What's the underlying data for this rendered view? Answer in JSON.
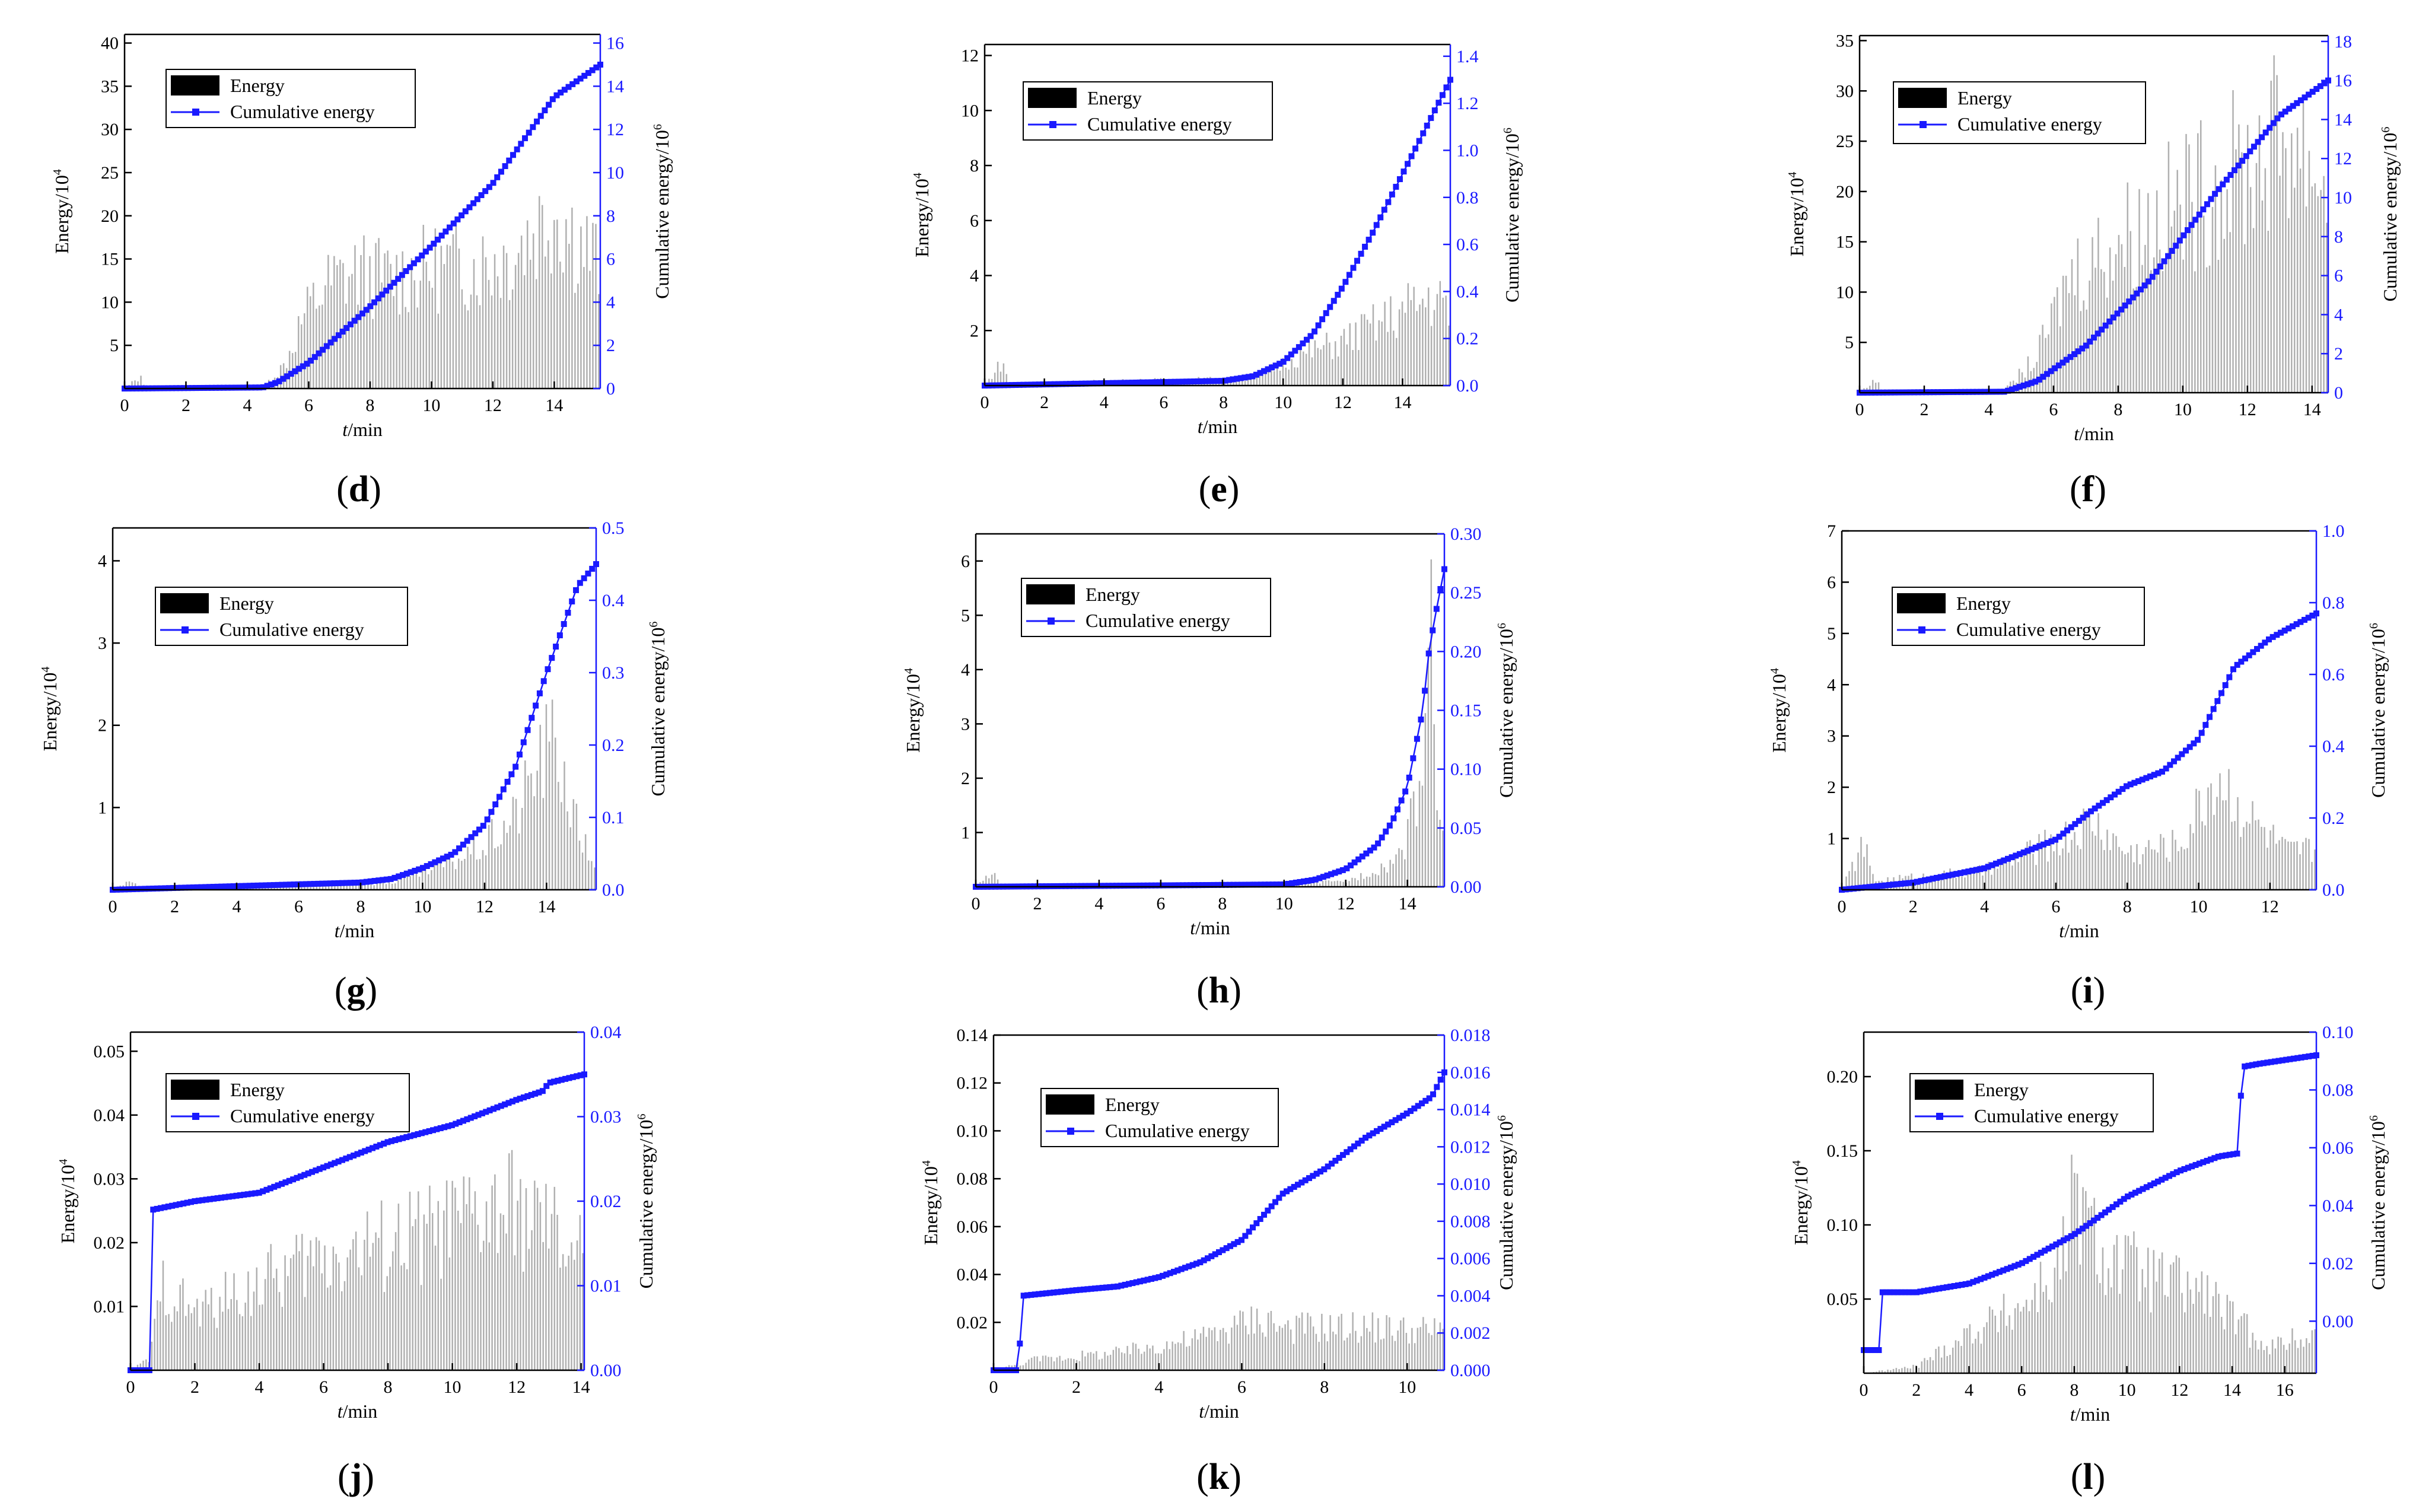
{
  "figure": {
    "colors": {
      "energy_bar": "#b0b0b0",
      "cumulative": "#1a1aff",
      "axis": "#000000",
      "legend_box": "#000000"
    },
    "legend": {
      "energy": "Energy",
      "cumulative": "Cumulative energy"
    },
    "xlabel_italic": "t",
    "xlabel_unit": "/min",
    "ylabel_left_base": "Energy/10",
    "ylabel_left_exp": "4",
    "ylabel_right_base": "Cumulative energy/10",
    "ylabel_right_exp": "6"
  },
  "chart_data": [
    {
      "id": "d",
      "type": "bar+line",
      "caption": "(d)",
      "xlabel": "t/min",
      "ylabel": "Energy/10^4",
      "y2label": "Cumulative energy/10^6",
      "xlim": [
        0,
        15.5
      ],
      "xticks": [
        0,
        2,
        4,
        6,
        8,
        10,
        12,
        14
      ],
      "ylim": [
        0,
        41
      ],
      "yticks": [
        5,
        10,
        15,
        20,
        25,
        30,
        35,
        40
      ],
      "y2lim": [
        0,
        16.4
      ],
      "y2ticks": [
        0,
        2,
        4,
        6,
        8,
        10,
        12,
        14,
        16
      ],
      "duration": 15.5,
      "energy_profile": [
        [
          0,
          0
        ],
        [
          0.5,
          1.5
        ],
        [
          0.7,
          0.1
        ],
        [
          4.5,
          0.2
        ],
        [
          5.2,
          3
        ],
        [
          5.8,
          9
        ],
        [
          6.5,
          13
        ],
        [
          7.5,
          15
        ],
        [
          8.5,
          14.2
        ],
        [
          10,
          15.5
        ],
        [
          11.5,
          16
        ],
        [
          12.5,
          17
        ],
        [
          13.5,
          21
        ],
        [
          14,
          23.5
        ],
        [
          14.6,
          20
        ],
        [
          15.5,
          16
        ]
      ],
      "cumulative_profile": [
        [
          0,
          0
        ],
        [
          4.5,
          0.05
        ],
        [
          5,
          0.3
        ],
        [
          6,
          1.2
        ],
        [
          8,
          3.8
        ],
        [
          10,
          6.6
        ],
        [
          12,
          9.5
        ],
        [
          14,
          13.5
        ],
        [
          15.5,
          15
        ]
      ],
      "legend_position": "upper-left"
    },
    {
      "id": "e",
      "type": "bar+line",
      "caption": "(e)",
      "xlabel": "t/min",
      "ylabel": "Energy/10^4",
      "y2label": "Cumulative energy/10^6",
      "xlim": [
        0,
        15.6
      ],
      "xticks": [
        0,
        2,
        4,
        6,
        8,
        10,
        12,
        14
      ],
      "ylim": [
        0,
        12.4
      ],
      "yticks": [
        2,
        4,
        6,
        8,
        10,
        12
      ],
      "y2lim": [
        0,
        1.45
      ],
      "y2ticks": [
        0.0,
        0.2,
        0.4,
        0.6,
        0.8,
        1.0,
        1.2,
        1.4
      ],
      "duration": 15.6,
      "energy_profile": [
        [
          0,
          0
        ],
        [
          0.6,
          1
        ],
        [
          0.8,
          0.1
        ],
        [
          9,
          0.3
        ],
        [
          10.5,
          1.2
        ],
        [
          12,
          1.8
        ],
        [
          14,
          3
        ],
        [
          15,
          3.6
        ],
        [
          15.6,
          3
        ]
      ],
      "cumulative_profile": [
        [
          0,
          0
        ],
        [
          8,
          0.02
        ],
        [
          9,
          0.04
        ],
        [
          10,
          0.1
        ],
        [
          11,
          0.22
        ],
        [
          12,
          0.42
        ],
        [
          13,
          0.65
        ],
        [
          14,
          0.9
        ],
        [
          15,
          1.15
        ],
        [
          15.6,
          1.3
        ]
      ],
      "legend_position": "upper-left"
    },
    {
      "id": "f",
      "type": "bar+line",
      "caption": "(f)",
      "xlabel": "t/min",
      "ylabel": "Energy/10^4",
      "y2label": "Cumulative energy/10^6",
      "xlim": [
        0,
        14.5
      ],
      "xticks": [
        0,
        2,
        4,
        6,
        8,
        10,
        12,
        14
      ],
      "ylim": [
        0,
        35.5
      ],
      "yticks": [
        5,
        10,
        15,
        20,
        25,
        30,
        35
      ],
      "y2lim": [
        0,
        18.3
      ],
      "y2ticks": [
        0,
        2,
        4,
        6,
        8,
        10,
        12,
        14,
        16,
        18
      ],
      "duration": 14.5,
      "energy_profile": [
        [
          0,
          0
        ],
        [
          0.5,
          1.5
        ],
        [
          0.7,
          0.1
        ],
        [
          4.5,
          0.3
        ],
        [
          5.5,
          4
        ],
        [
          6.5,
          13
        ],
        [
          8,
          17
        ],
        [
          10,
          21
        ],
        [
          12,
          25
        ],
        [
          13.2,
          29
        ],
        [
          14,
          26
        ],
        [
          14.5,
          22
        ]
      ],
      "cumulative_profile": [
        [
          0,
          0
        ],
        [
          4.5,
          0.05
        ],
        [
          5.5,
          0.6
        ],
        [
          7,
          2.4
        ],
        [
          9,
          5.8
        ],
        [
          11,
          10.2
        ],
        [
          13,
          14.2
        ],
        [
          14.5,
          16
        ]
      ],
      "legend_position": "upper-left"
    },
    {
      "id": "g",
      "type": "bar+line",
      "caption": "(g)",
      "xlabel": "t/min",
      "ylabel": "Energy/10^4",
      "y2label": "Cumulative energy/10^6",
      "xlim": [
        0,
        15.6
      ],
      "xticks": [
        0,
        2,
        4,
        6,
        8,
        10,
        12,
        14
      ],
      "ylim": [
        0,
        4.4
      ],
      "yticks": [
        1,
        2,
        3,
        4
      ],
      "y2lim": [
        0,
        0.5
      ],
      "y2ticks": [
        0.0,
        0.1,
        0.2,
        0.3,
        0.4,
        0.5
      ],
      "duration": 15.6,
      "energy_profile": [
        [
          0,
          0
        ],
        [
          0.6,
          0.15
        ],
        [
          0.8,
          0.02
        ],
        [
          9,
          0.1
        ],
        [
          10.5,
          0.3
        ],
        [
          12,
          0.6
        ],
        [
          13,
          1
        ],
        [
          13.8,
          1.8
        ],
        [
          14.3,
          2
        ],
        [
          15,
          0.8
        ],
        [
          15.6,
          0.3
        ]
      ],
      "cumulative_profile": [
        [
          0,
          0
        ],
        [
          8,
          0.01
        ],
        [
          9,
          0.015
        ],
        [
          10,
          0.03
        ],
        [
          11,
          0.05
        ],
        [
          12,
          0.09
        ],
        [
          13,
          0.17
        ],
        [
          14,
          0.3
        ],
        [
          15,
          0.42
        ],
        [
          15.6,
          0.45
        ]
      ],
      "legend_position": "upper-left"
    },
    {
      "id": "h",
      "type": "bar+line",
      "caption": "(h)",
      "xlabel": "t/min",
      "ylabel": "Energy/10^4",
      "y2label": "Cumulative energy/10^6",
      "xlim": [
        0,
        15.2
      ],
      "xticks": [
        0,
        2,
        4,
        6,
        8,
        10,
        12,
        14
      ],
      "ylim": [
        0,
        6.5
      ],
      "yticks": [
        1,
        2,
        3,
        4,
        5,
        6
      ],
      "y2lim": [
        0,
        0.3
      ],
      "y2ticks": [
        0.0,
        0.05,
        0.1,
        0.15,
        0.2,
        0.25,
        0.3
      ],
      "duration": 15.2,
      "energy_profile": [
        [
          0,
          0
        ],
        [
          0.6,
          0.3
        ],
        [
          0.8,
          0.02
        ],
        [
          12,
          0.1
        ],
        [
          13.5,
          0.5
        ],
        [
          14,
          1
        ],
        [
          14.5,
          2.5
        ],
        [
          14.7,
          5.8
        ],
        [
          15,
          2
        ],
        [
          15.2,
          1
        ]
      ],
      "cumulative_profile": [
        [
          0,
          0
        ],
        [
          10,
          0.002
        ],
        [
          11,
          0.006
        ],
        [
          12,
          0.015
        ],
        [
          13,
          0.035
        ],
        [
          13.5,
          0.055
        ],
        [
          14,
          0.085
        ],
        [
          14.5,
          0.15
        ],
        [
          14.7,
          0.2
        ],
        [
          14.9,
          0.23
        ],
        [
          15.2,
          0.27
        ]
      ],
      "legend_position": "upper-right"
    },
    {
      "id": "i",
      "type": "bar+line",
      "caption": "(i)",
      "xlabel": "t/min",
      "ylabel": "Energy/10^4",
      "y2label": "Cumulative energy/10^6",
      "xlim": [
        0,
        13.3
      ],
      "xticks": [
        0,
        2,
        4,
        6,
        8,
        10,
        12
      ],
      "ylim": [
        0,
        7
      ],
      "yticks": [
        1,
        2,
        3,
        4,
        5,
        6,
        7
      ],
      "y2lim": [
        0,
        1.0
      ],
      "y2ticks": [
        0.0,
        0.2,
        0.4,
        0.6,
        0.8,
        1.0
      ],
      "duration": 13.3,
      "energy_profile": [
        [
          0,
          0
        ],
        [
          0.6,
          1
        ],
        [
          0.9,
          0.2
        ],
        [
          4,
          0.4
        ],
        [
          6.5,
          1.2
        ],
        [
          7,
          1.5
        ],
        [
          8,
          0.8
        ],
        [
          9.5,
          1
        ],
        [
          10.5,
          2.5
        ],
        [
          11.5,
          1.5
        ],
        [
          12.5,
          0.8
        ],
        [
          13.3,
          0.9
        ]
      ],
      "cumulative_profile": [
        [
          0,
          0
        ],
        [
          1,
          0.01
        ],
        [
          2,
          0.02
        ],
        [
          4,
          0.06
        ],
        [
          6,
          0.14
        ],
        [
          7,
          0.22
        ],
        [
          8,
          0.29
        ],
        [
          9,
          0.33
        ],
        [
          10,
          0.42
        ],
        [
          10.5,
          0.52
        ],
        [
          11,
          0.62
        ],
        [
          12,
          0.7
        ],
        [
          13.3,
          0.77
        ]
      ],
      "legend_position": "upper-left"
    },
    {
      "id": "j",
      "type": "bar+line",
      "caption": "(j)",
      "xlabel": "t/min",
      "ylabel": "Energy/10^4",
      "y2label": "Cumulative energy/10^6",
      "xlim": [
        0,
        14.1
      ],
      "xticks": [
        0,
        2,
        4,
        6,
        8,
        10,
        12,
        14
      ],
      "ylim": [
        0,
        0.053
      ],
      "yticks": [
        0.01,
        0.02,
        0.03,
        0.04,
        0.05
      ],
      "y2lim": [
        0,
        0.04
      ],
      "y2ticks": [
        0.0,
        0.01,
        0.02,
        0.03,
        0.04
      ],
      "duration": 14.1,
      "energy_profile": [
        [
          0,
          0
        ],
        [
          0.6,
          0.002
        ],
        [
          1,
          0.015
        ],
        [
          2,
          0.01
        ],
        [
          4,
          0.015
        ],
        [
          6,
          0.02
        ],
        [
          8,
          0.022
        ],
        [
          10,
          0.025
        ],
        [
          12,
          0.028
        ],
        [
          14,
          0.02
        ]
      ],
      "cumulative_profile": [
        [
          0,
          0
        ],
        [
          0.6,
          0
        ],
        [
          0.7,
          0.019
        ],
        [
          2,
          0.02
        ],
        [
          4,
          0.021
        ],
        [
          6,
          0.024
        ],
        [
          8,
          0.027
        ],
        [
          10,
          0.029
        ],
        [
          12,
          0.032
        ],
        [
          12.8,
          0.033
        ],
        [
          13,
          0.034
        ],
        [
          14.1,
          0.035
        ]
      ],
      "legend_position": "upper-left"
    },
    {
      "id": "k",
      "type": "bar+line",
      "caption": "(k)",
      "xlabel": "t/min",
      "ylabel": "Energy/10^4",
      "y2label": "Cumulative energy/10^6",
      "xlim": [
        0,
        10.9
      ],
      "xticks": [
        0,
        2,
        4,
        6,
        8,
        10
      ],
      "ylim": [
        0,
        0.14
      ],
      "yticks": [
        0.02,
        0.04,
        0.06,
        0.08,
        0.1,
        0.12,
        0.14
      ],
      "y2lim": [
        0,
        0.018
      ],
      "y2ticks": [
        0.0,
        0.002,
        0.004,
        0.006,
        0.008,
        0.01,
        0.012,
        0.014,
        0.016,
        0.018
      ],
      "duration": 10.9,
      "energy_profile": [
        [
          0,
          0
        ],
        [
          1,
          0.005
        ],
        [
          3,
          0.008
        ],
        [
          5,
          0.015
        ],
        [
          6.5,
          0.025
        ],
        [
          7,
          0.02
        ],
        [
          9,
          0.02
        ],
        [
          10.9,
          0.018
        ]
      ],
      "cumulative_profile": [
        [
          0,
          0
        ],
        [
          0.6,
          0
        ],
        [
          0.7,
          0.004
        ],
        [
          2,
          0.0043
        ],
        [
          3,
          0.0045
        ],
        [
          4,
          0.005
        ],
        [
          5,
          0.0058
        ],
        [
          6,
          0.007
        ],
        [
          6.8,
          0.009
        ],
        [
          7,
          0.0095
        ],
        [
          8,
          0.0108
        ],
        [
          9,
          0.0125
        ],
        [
          10,
          0.0138
        ],
        [
          10.6,
          0.0147
        ],
        [
          10.9,
          0.016
        ]
      ],
      "legend_position": "upper-right"
    },
    {
      "id": "l",
      "type": "bar+line",
      "caption": "(l)",
      "xlabel": "t/min",
      "ylabel": "Energy/10^4",
      "y2label": "Cumulative energy/10^6",
      "xlim": [
        0,
        17.2
      ],
      "xticks": [
        0,
        2,
        4,
        6,
        8,
        10,
        12,
        14,
        16
      ],
      "ylim": [
        0,
        0.23
      ],
      "yticks": [
        0.05,
        0.1,
        0.15,
        0.2
      ],
      "y2lim": [
        -0.018,
        0.1
      ],
      "y2ticks": [
        0.0,
        0.02,
        0.04,
        0.06,
        0.08,
        0.1
      ],
      "duration": 17.2,
      "energy_profile": [
        [
          0,
          0
        ],
        [
          2,
          0.005
        ],
        [
          4,
          0.03
        ],
        [
          6,
          0.05
        ],
        [
          7.5,
          0.08
        ],
        [
          8,
          0.13
        ],
        [
          9,
          0.09
        ],
        [
          11,
          0.07
        ],
        [
          13,
          0.06
        ],
        [
          14,
          0.04
        ],
        [
          15.5,
          0.02
        ],
        [
          17.2,
          0.03
        ]
      ],
      "cumulative_profile": [
        [
          0,
          -0.01
        ],
        [
          0.6,
          -0.01
        ],
        [
          0.7,
          0.01
        ],
        [
          2,
          0.01
        ],
        [
          4,
          0.013
        ],
        [
          6,
          0.02
        ],
        [
          8,
          0.03
        ],
        [
          10,
          0.043
        ],
        [
          12,
          0.052
        ],
        [
          13.5,
          0.057
        ],
        [
          14.2,
          0.058
        ],
        [
          14.4,
          0.088
        ],
        [
          15,
          0.089
        ],
        [
          17.2,
          0.092
        ]
      ],
      "legend_position": "upper-left"
    }
  ]
}
